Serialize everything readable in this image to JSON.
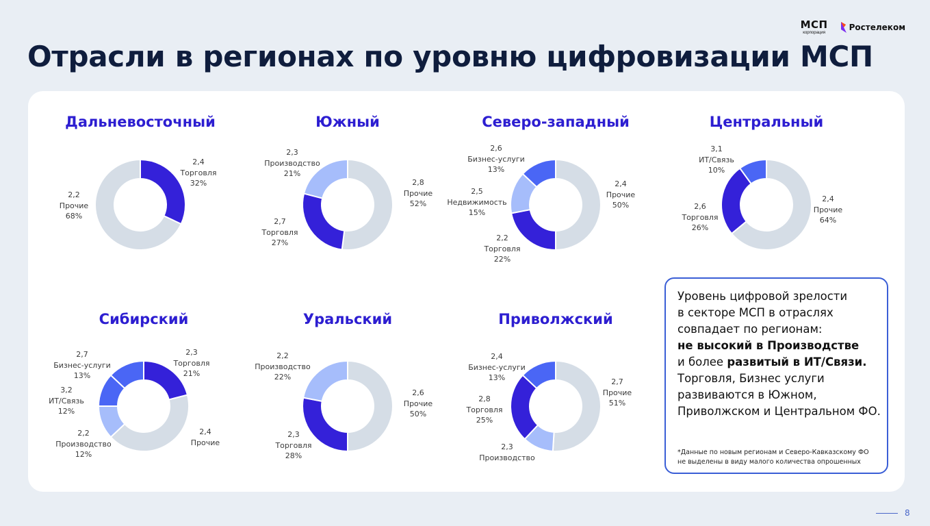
{
  "header": {
    "title": "Отрасли в регионах по уровню цифровизации МСП",
    "logo_msp_main": "МСП",
    "logo_msp_sub": "корпорация",
    "logo_rt": "Ростелеком"
  },
  "colors": {
    "dark_blue": "#3421d9",
    "blue": "#4a66f5",
    "light_blue": "#a6bdfb",
    "gray": "#d5dde6",
    "title_blue": "#2d1ed1"
  },
  "chart_data": [
    {
      "type": "pie",
      "title": "Дальневосточный",
      "slices": [
        {
          "name": "Торговля",
          "score": "2,4",
          "percent": 32,
          "color": "#3421d9"
        },
        {
          "name": "Прочие",
          "score": "2,2",
          "percent": 68,
          "color": "#d5dde6"
        }
      ]
    },
    {
      "type": "pie",
      "title": "Южный",
      "slices": [
        {
          "name": "Прочие",
          "score": "2,8",
          "percent": 52,
          "color": "#d5dde6"
        },
        {
          "name": "Торговля",
          "score": "2,7",
          "percent": 27,
          "color": "#3421d9"
        },
        {
          "name": "Производство",
          "score": "2,3",
          "percent": 21,
          "color": "#a6bdfb"
        }
      ]
    },
    {
      "type": "pie",
      "title": "Северо-западный",
      "slices": [
        {
          "name": "Прочие",
          "score": "2,4",
          "percent": 50,
          "color": "#d5dde6"
        },
        {
          "name": "Торговля",
          "score": "2,2",
          "percent": 22,
          "color": "#3421d9"
        },
        {
          "name": "Недвижимость",
          "score": "2,5",
          "percent": 15,
          "color": "#a6bdfb"
        },
        {
          "name": "Бизнес-услуги",
          "score": "2,6",
          "percent": 13,
          "color": "#4a66f5"
        }
      ]
    },
    {
      "type": "pie",
      "title": "Центральный",
      "slices": [
        {
          "name": "Прочие",
          "score": "2,4",
          "percent": 64,
          "color": "#d5dde6"
        },
        {
          "name": "Торговля",
          "score": "2,6",
          "percent": 26,
          "color": "#3421d9"
        },
        {
          "name": "ИТ/Связь",
          "score": "3,1",
          "percent": 10,
          "color": "#4a66f5"
        }
      ]
    },
    {
      "type": "pie",
      "title": "Сибирский",
      "slices": [
        {
          "name": "Торговля",
          "score": "2,3",
          "percent": 21,
          "color": "#3421d9"
        },
        {
          "name": "Прочие",
          "score": "2,4",
          "percent": 42,
          "color": "#d5dde6"
        },
        {
          "name": "Производство",
          "score": "2,2",
          "percent": 12,
          "color": "#a6bdfb"
        },
        {
          "name": "ИТ/Связь",
          "score": "3,2",
          "percent": 12,
          "color": "#4a66f5"
        },
        {
          "name": "Бизнес-услуги",
          "score": "2,7",
          "percent": 13,
          "color": "#4a66f5"
        }
      ]
    },
    {
      "type": "pie",
      "title": "Уральский",
      "slices": [
        {
          "name": "Прочие",
          "score": "2,6",
          "percent": 50,
          "color": "#d5dde6"
        },
        {
          "name": "Торговля",
          "score": "2,3",
          "percent": 28,
          "color": "#3421d9"
        },
        {
          "name": "Производство",
          "score": "2,2",
          "percent": 22,
          "color": "#a6bdfb"
        }
      ]
    },
    {
      "type": "pie",
      "title": "Приволжский",
      "slices": [
        {
          "name": "Прочие",
          "score": "2,7",
          "percent": 51,
          "color": "#d5dde6"
        },
        {
          "name": "Производство",
          "score": "2,3",
          "percent": 11,
          "color": "#a6bdfb"
        },
        {
          "name": "Торговля",
          "score": "2,8",
          "percent": 25,
          "color": "#3421d9"
        },
        {
          "name": "Бизнес-услуги",
          "score": "2,4",
          "percent": 13,
          "color": "#4a66f5"
        }
      ]
    }
  ],
  "note": {
    "line1": "Уровень цифровой зрелости",
    "line2": "в секторе МСП в отраслях",
    "line3": "совпадает по регионам:",
    "line4": "не высокий в Производстве",
    "line5_pre": "и более ",
    "line5_bold": "развитый в ИТ/Связи.",
    "line6": "Торговля, Бизнес услуги",
    "line7": "развиваются в Южном,",
    "line8": "Приволжском и Центральном ФО.",
    "footnote1": "*Данные по новым регионам и Северо-Кавказскому ФО",
    "footnote2": "не выделены в виду  малого количества опрошенных"
  },
  "page_number": "8"
}
